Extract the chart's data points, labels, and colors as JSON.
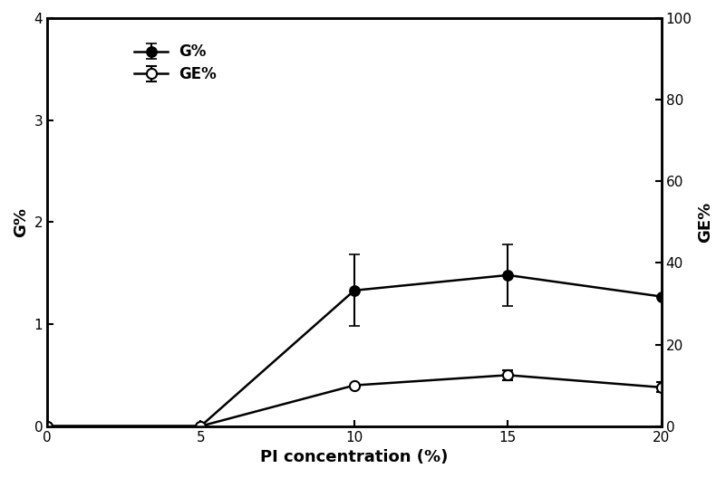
{
  "x": [
    0,
    5,
    10,
    15,
    20
  ],
  "G_values": [
    0.0,
    0.0,
    1.33,
    1.48,
    1.27
  ],
  "G_errors": [
    0.0,
    0.0,
    0.35,
    0.3,
    0.0
  ],
  "GE_values_right": [
    0.0,
    0.0,
    10.0,
    12.5,
    9.5
  ],
  "GE_errors_right": [
    0.0,
    0.0,
    0.0,
    1.2,
    1.2
  ],
  "xlabel": "PI concentration (%)",
  "ylabel_left": "G%",
  "ylabel_right": "GE%",
  "xlim": [
    0,
    20
  ],
  "ylim_left": [
    0,
    4
  ],
  "ylim_right": [
    0,
    100
  ],
  "yticks_left": [
    0,
    1,
    2,
    3,
    4
  ],
  "yticks_right": [
    0,
    20,
    40,
    60,
    80,
    100
  ],
  "xticks": [
    0,
    5,
    10,
    15,
    20
  ],
  "legend_G": "G%",
  "legend_GE": "GE%",
  "line_color": "#000000",
  "markersize": 8,
  "linewidth": 1.8,
  "capsize": 4,
  "elinewidth": 1.5,
  "fontsize_label": 13,
  "fontsize_tick": 11,
  "fontsize_legend": 12
}
